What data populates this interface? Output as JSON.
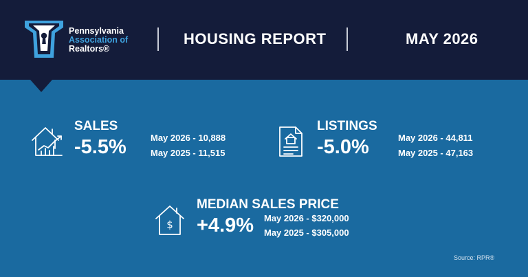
{
  "brand": {
    "line1": "Pennsylvania",
    "line2": "Association of",
    "line3": "Realtors®"
  },
  "header": {
    "title": "HOUSING REPORT",
    "date": "MAY 2026"
  },
  "stats": {
    "sales": {
      "label": "SALES",
      "percent": "-5.5%",
      "line1": "May 2026 - 10,888",
      "line2": "May 2025 - 11,515"
    },
    "listings": {
      "label": "LISTINGS",
      "percent": "-5.0%",
      "line1": "May 2026 - 44,811",
      "line2": "May 2025 - 47,163"
    },
    "price": {
      "label": "MEDIAN SALES PRICE",
      "percent": "+4.9%",
      "line1": "May 2026 - $320,000",
      "line2": "May 2025 - $305,000"
    }
  },
  "footer": {
    "source": "Source: RPR®"
  },
  "colors": {
    "header_bg": "#141c3a",
    "body_bg": "#1a6aa0",
    "accent": "#3fa2de",
    "text": "#ffffff"
  }
}
